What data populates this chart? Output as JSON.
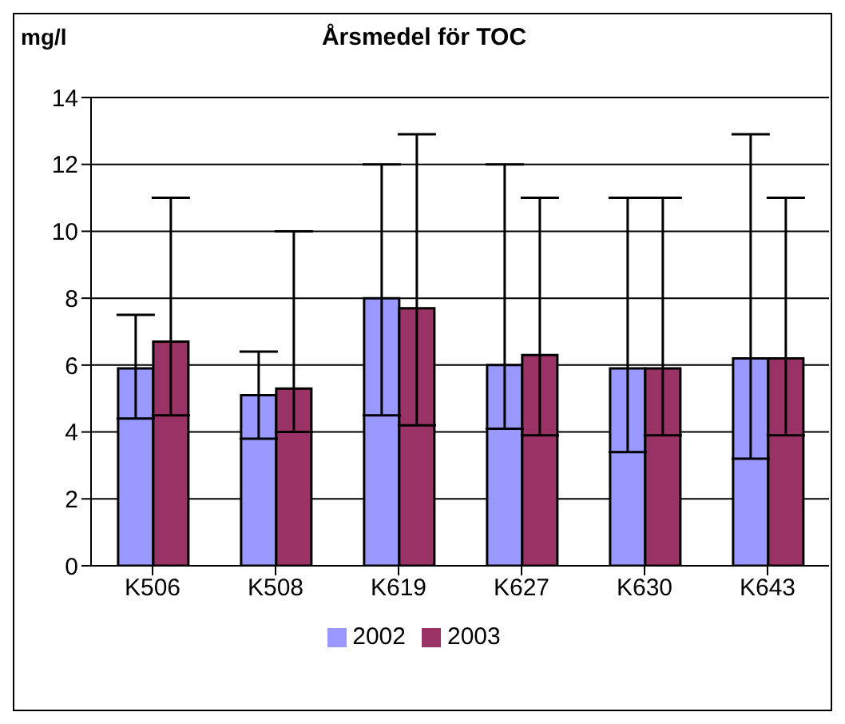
{
  "chart_data": {
    "type": "bar",
    "title": "Årsmedel för TOC",
    "ylabel": "mg/l",
    "categories": [
      "K506",
      "K508",
      "K619",
      "K627",
      "K630",
      "K643"
    ],
    "series": [
      {
        "name": "2002",
        "color": "#9999ff",
        "values": [
          5.9,
          5.1,
          8.0,
          6.0,
          5.9,
          6.2
        ],
        "errors": [
          [
            4.4,
            7.5
          ],
          [
            3.8,
            6.4
          ],
          [
            4.5,
            12
          ],
          [
            4.1,
            12
          ],
          [
            3.4,
            11
          ],
          [
            3.2,
            12.9
          ]
        ]
      },
      {
        "name": "2003",
        "color": "#993366",
        "values": [
          6.7,
          5.3,
          7.7,
          6.3,
          5.9,
          6.2
        ],
        "errors": [
          [
            4.5,
            11
          ],
          [
            4.0,
            10
          ],
          [
            4.2,
            12.9
          ],
          [
            3.9,
            11
          ],
          [
            3.9,
            11
          ],
          [
            3.9,
            11
          ]
        ]
      }
    ],
    "ylim": [
      0,
      14
    ],
    "yticks": [
      0,
      2,
      4,
      6,
      8,
      10,
      12,
      14
    ],
    "grid": "y",
    "legend": "bottom"
  }
}
